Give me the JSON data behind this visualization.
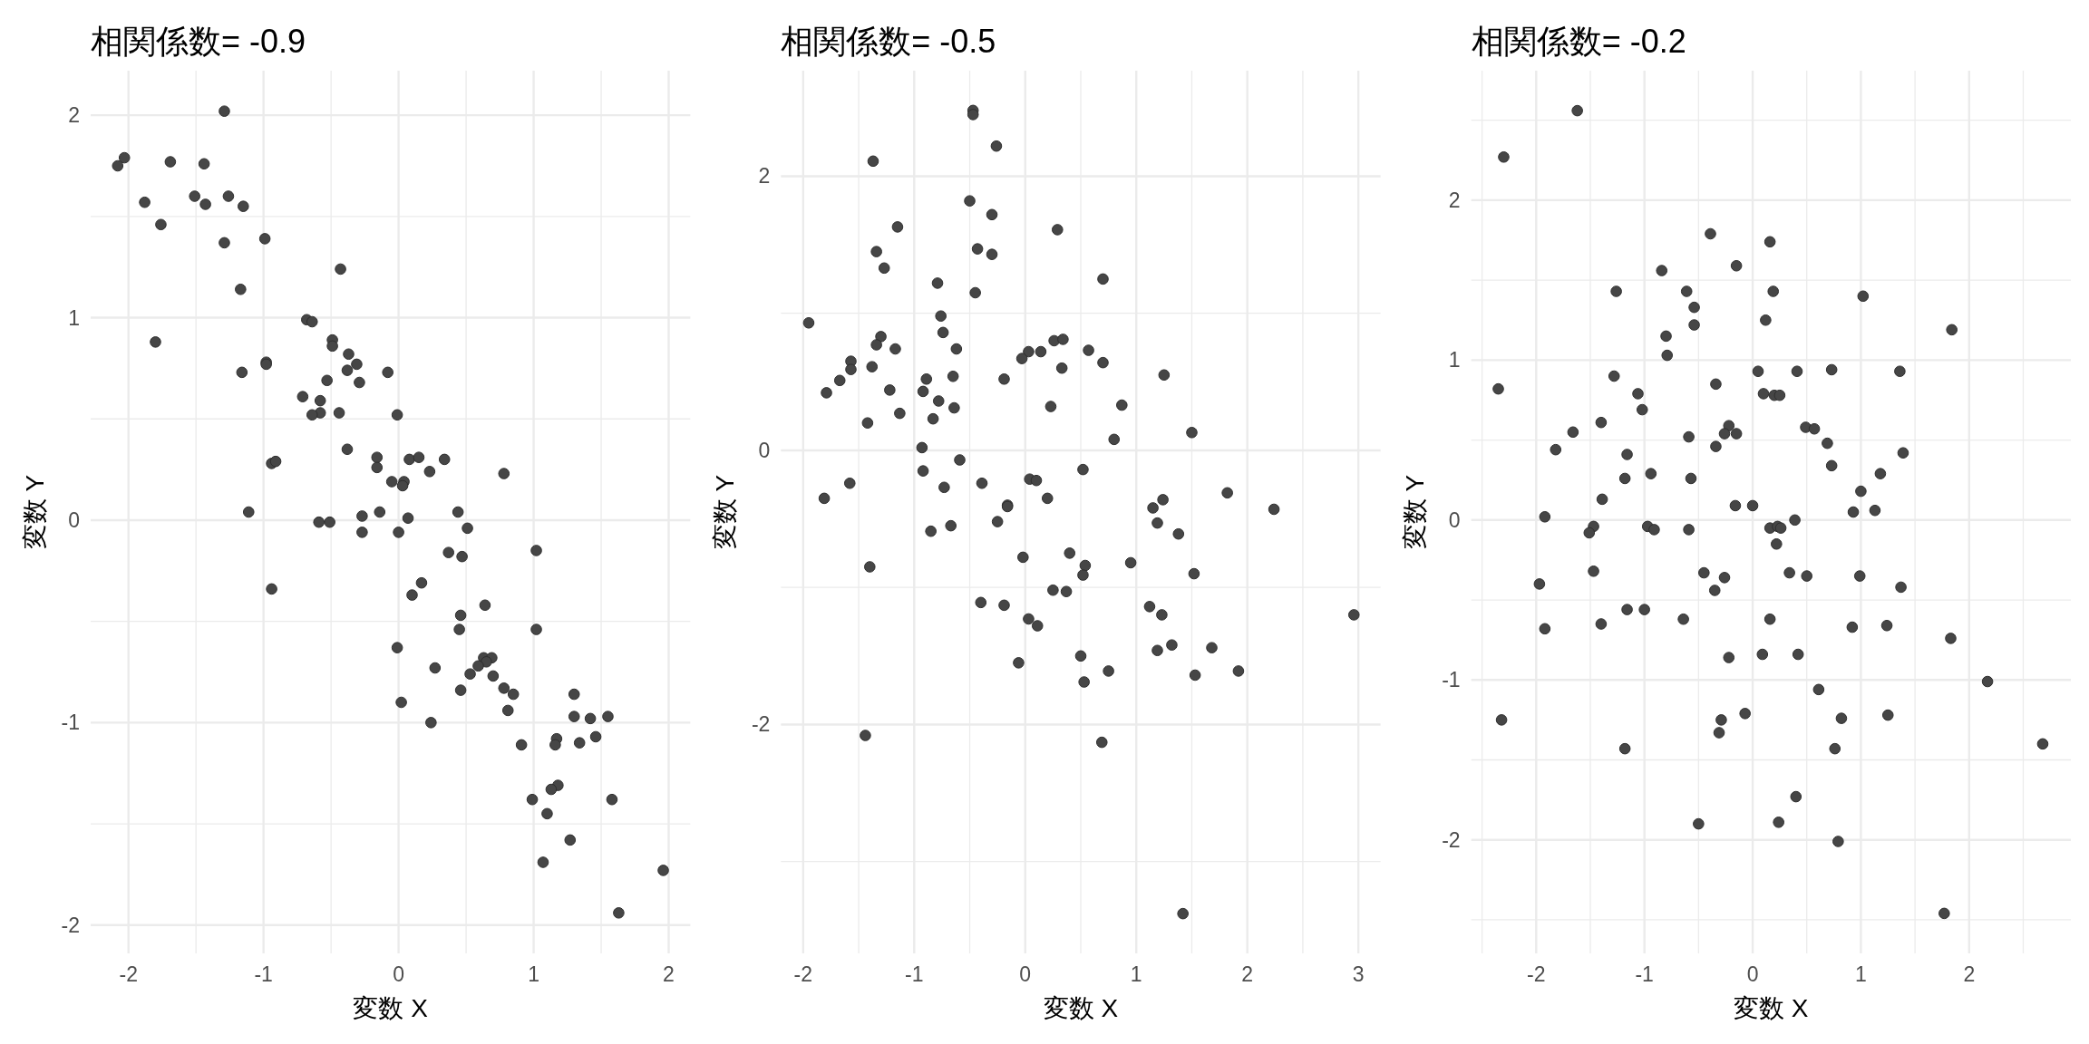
{
  "chart_data": [
    {
      "type": "scatter",
      "title": "相関係数= -0.9",
      "xlabel": "変数 X",
      "ylabel": "変数 Y",
      "color": "#464646",
      "marker": "circle",
      "grid": true,
      "xlim": [
        -2.28,
        2.16
      ],
      "ylim": [
        -2.14,
        2.22
      ],
      "xticks": [
        -2,
        {
          "value": -1.5,
          "label": null
        },
        -1,
        {
          "value": -0.5,
          "label": null
        },
        0,
        {
          "value": 0.5,
          "label": null
        },
        1,
        {
          "value": 1.5,
          "label": null
        },
        2
      ],
      "yticks": [
        -2,
        {
          "value": -1.5,
          "label": null
        },
        -1,
        {
          "value": -0.5,
          "label": null
        },
        0,
        {
          "value": 0.5,
          "label": null
        },
        1,
        {
          "value": 1.5,
          "label": null
        },
        2
      ],
      "x": [
        -2.08,
        -2.03,
        -1.69,
        -1.44,
        -1.29,
        -1.88,
        -1.76,
        -1.51,
        -1.43,
        -1.26,
        -1.15,
        -1.29,
        -0.99,
        -0.43,
        -1.17,
        -0.68,
        -0.64,
        -1.8,
        -0.49,
        -0.49,
        -0.37,
        -0.98,
        -0.98,
        -0.31,
        -0.38,
        -0.08,
        -1.16,
        -0.53,
        -0.29,
        -0.71,
        -0.58,
        -0.58,
        -0.64,
        -0.44,
        -0.01,
        -0.38,
        -0.16,
        -0.16,
        0.08,
        0.15,
        0.34,
        0.23,
        0.78,
        -0.94,
        -0.91,
        -0.05,
        0.04,
        0.03,
        -1.11,
        -0.27,
        -0.14,
        0.07,
        0.44,
        -0.59,
        -0.51,
        -0.27,
        0.0,
        0.51,
        0.37,
        0.47,
        1.02,
        -0.94,
        0.17,
        0.1,
        0.64,
        0.46,
        0.45,
        1.02,
        -0.01,
        0.63,
        0.69,
        0.65,
        0.59,
        0.27,
        0.53,
        0.7,
        0.46,
        0.78,
        0.85,
        0.02,
        0.81,
        0.24,
        1.3,
        1.3,
        1.42,
        1.55,
        1.46,
        1.34,
        1.17,
        1.16,
        0.91,
        1.18,
        1.13,
        0.99,
        1.58,
        1.1,
        1.27,
        1.07,
        1.96,
        1.63
      ],
      "values": [
        1.75,
        1.79,
        1.77,
        1.76,
        2.02,
        1.57,
        1.46,
        1.6,
        1.56,
        1.6,
        1.55,
        1.37,
        1.39,
        1.24,
        1.14,
        0.99,
        0.98,
        0.88,
        0.89,
        0.86,
        0.82,
        0.78,
        0.77,
        0.77,
        0.74,
        0.73,
        0.73,
        0.69,
        0.68,
        0.61,
        0.59,
        0.53,
        0.52,
        0.53,
        0.52,
        0.35,
        0.31,
        0.26,
        0.3,
        0.31,
        0.3,
        0.24,
        0.23,
        0.28,
        0.29,
        0.19,
        0.19,
        0.17,
        0.04,
        0.02,
        0.04,
        0.01,
        0.04,
        -0.01,
        -0.01,
        -0.06,
        -0.06,
        -0.04,
        -0.16,
        -0.18,
        -0.15,
        -0.34,
        -0.31,
        -0.37,
        -0.42,
        -0.47,
        -0.54,
        -0.54,
        -0.63,
        -0.68,
        -0.68,
        -0.7,
        -0.72,
        -0.73,
        -0.76,
        -0.77,
        -0.84,
        -0.83,
        -0.86,
        -0.9,
        -0.94,
        -1.0,
        -0.86,
        -0.97,
        -0.98,
        -0.97,
        -1.07,
        -1.1,
        -1.08,
        -1.11,
        -1.11,
        -1.31,
        -1.33,
        -1.38,
        -1.38,
        -1.45,
        -1.58,
        -1.69,
        -1.73,
        -1.94
      ]
    },
    {
      "type": "scatter",
      "title": "相関係数= -0.5",
      "xlabel": "変数 X",
      "ylabel": "変数 Y",
      "color": "#464646",
      "marker": "circle",
      "grid": true,
      "xlim": [
        -2.2,
        3.2
      ],
      "ylim": [
        -3.67,
        2.77
      ],
      "xticks": [
        -2,
        {
          "value": -1.5,
          "label": null
        },
        -1,
        {
          "value": -0.5,
          "label": null
        },
        0,
        {
          "value": 0.5,
          "label": null
        },
        1,
        {
          "value": 1.5,
          "label": null
        },
        2,
        {
          "value": 2.5,
          "label": null
        },
        3
      ],
      "yticks": [
        {
          "value": -3,
          "label": null
        },
        -2,
        {
          "value": -1,
          "label": null
        },
        0,
        {
          "value": 1,
          "label": null
        },
        2
      ],
      "x": [
        -0.47,
        -0.47,
        -0.26,
        -1.37,
        -0.5,
        -0.3,
        0.29,
        -1.15,
        -1.34,
        -0.43,
        -0.3,
        -1.27,
        0.7,
        -0.79,
        -0.45,
        -1.95,
        -0.76,
        -0.74,
        -1.3,
        -1.34,
        -1.17,
        -0.62,
        0.26,
        0.34,
        0.03,
        0.14,
        -0.03,
        0.57,
        0.7,
        -1.57,
        -1.57,
        -1.38,
        0.33,
        -1.67,
        -0.89,
        -0.65,
        -0.19,
        1.25,
        -1.79,
        -1.22,
        -0.92,
        -0.78,
        -0.64,
        0.23,
        0.87,
        -1.13,
        -0.83,
        -1.42,
        1.5,
        0.8,
        -0.93,
        -0.59,
        0.52,
        -0.92,
        -1.58,
        -0.39,
        0.04,
        0.1,
        -0.73,
        -1.81,
        0.2,
        -0.16,
        -0.16,
        1.82,
        1.24,
        1.15,
        2.24,
        -0.25,
        1.19,
        1.38,
        -0.85,
        -0.67,
        -0.02,
        0.4,
        -1.4,
        0.54,
        0.52,
        0.95,
        1.52,
        0.25,
        0.37,
        -0.4,
        -0.19,
        1.12,
        1.23,
        2.96,
        0.03,
        0.11,
        1.32,
        1.19,
        1.68,
        0.5,
        -0.06,
        0.75,
        1.92,
        0.53,
        1.53,
        -1.44,
        0.69,
        1.42
      ],
      "values": [
        2.48,
        2.45,
        2.22,
        2.11,
        1.82,
        1.72,
        1.61,
        1.63,
        1.45,
        1.47,
        1.43,
        1.33,
        1.25,
        1.22,
        1.15,
        0.93,
        0.98,
        0.86,
        0.83,
        0.77,
        0.74,
        0.74,
        0.8,
        0.81,
        0.72,
        0.72,
        0.67,
        0.73,
        0.64,
        0.65,
        0.59,
        0.61,
        0.6,
        0.51,
        0.52,
        0.54,
        0.52,
        0.55,
        0.42,
        0.44,
        0.43,
        0.36,
        0.31,
        0.32,
        0.33,
        0.27,
        0.23,
        0.2,
        0.13,
        0.08,
        0.02,
        -0.07,
        -0.14,
        -0.15,
        -0.24,
        -0.24,
        -0.21,
        -0.22,
        -0.27,
        -0.35,
        -0.35,
        -0.4,
        -0.41,
        -0.31,
        -0.36,
        -0.42,
        -0.43,
        -0.52,
        -0.53,
        -0.61,
        -0.59,
        -0.55,
        -0.78,
        -0.75,
        -0.85,
        -0.84,
        -0.91,
        -0.82,
        -0.9,
        -1.02,
        -1.03,
        -1.11,
        -1.13,
        -1.14,
        -1.2,
        -1.2,
        -1.23,
        -1.28,
        -1.42,
        -1.46,
        -1.44,
        -1.5,
        -1.55,
        -1.61,
        -1.61,
        -1.69,
        -1.64,
        -2.08,
        -2.13,
        -3.38
      ]
    },
    {
      "type": "scatter",
      "title": "相関係数= -0.2",
      "xlabel": "変数 X",
      "ylabel": "変数 Y",
      "color": "#464646",
      "marker": "circle",
      "grid": true,
      "xlim": [
        -2.6,
        2.94
      ],
      "ylim": [
        -2.71,
        2.81
      ],
      "xticks": [
        {
          "value": -2.5,
          "label": null
        },
        -2,
        {
          "value": -1.5,
          "label": null
        },
        -1,
        {
          "value": -0.5,
          "label": null
        },
        0,
        {
          "value": 0.5,
          "label": null
        },
        1,
        {
          "value": 1.5,
          "label": null
        },
        2,
        {
          "value": 2.5,
          "label": null
        }
      ],
      "yticks": [
        {
          "value": -2.5,
          "label": null
        },
        -2,
        {
          "value": -1.5,
          "label": null
        },
        -1,
        {
          "value": -0.5,
          "label": null
        },
        0,
        {
          "value": 0.5,
          "label": null
        },
        1,
        {
          "value": 1.5,
          "label": null
        },
        2,
        {
          "value": 2.5,
          "label": null
        }
      ],
      "x": [
        -1.62,
        -2.3,
        -0.39,
        0.16,
        -0.15,
        -0.84,
        -1.26,
        -0.61,
        0.19,
        1.02,
        -0.54,
        0.12,
        -0.54,
        1.84,
        -0.8,
        -0.79,
        0.05,
        0.41,
        0.73,
        1.36,
        -1.28,
        -2.35,
        -0.34,
        -1.06,
        0.1,
        0.2,
        0.25,
        -1.02,
        -1.4,
        -0.22,
        -1.66,
        -0.26,
        -0.15,
        -0.59,
        0.49,
        0.57,
        0.69,
        -0.34,
        -1.82,
        -1.16,
        1.39,
        0.73,
        -0.94,
        1.18,
        -1.18,
        -0.57,
        1.0,
        -1.39,
        -0.16,
        0.0,
        -1.92,
        0.93,
        1.13,
        0.39,
        -1.47,
        -1.51,
        -0.97,
        -0.91,
        -0.59,
        0.16,
        0.23,
        0.26,
        0.22,
        -1.47,
        -1.97,
        -0.45,
        -0.26,
        0.34,
        0.5,
        0.99,
        -0.35,
        1.37,
        -1.16,
        -1.0,
        -0.64,
        0.16,
        -1.92,
        -1.4,
        0.92,
        1.24,
        1.83,
        -0.22,
        0.09,
        0.42,
        2.17,
        0.61,
        -2.32,
        -0.07,
        -0.29,
        -0.31,
        0.82,
        1.25,
        -1.18,
        0.76,
        2.68,
        0.4,
        -0.5,
        0.24,
        0.79,
        1.77
      ],
      "values": [
        2.56,
        2.27,
        1.79,
        1.74,
        1.59,
        1.56,
        1.43,
        1.43,
        1.43,
        1.4,
        1.33,
        1.25,
        1.22,
        1.19,
        1.15,
        1.03,
        0.93,
        0.93,
        0.94,
        0.93,
        0.9,
        0.82,
        0.85,
        0.79,
        0.79,
        0.78,
        0.78,
        0.69,
        0.61,
        0.59,
        0.55,
        0.54,
        0.54,
        0.52,
        0.58,
        0.57,
        0.48,
        0.46,
        0.44,
        0.41,
        0.42,
        0.34,
        0.29,
        0.29,
        0.26,
        0.26,
        0.18,
        0.13,
        0.09,
        0.09,
        0.02,
        0.05,
        0.06,
        0.0,
        -0.04,
        -0.08,
        -0.04,
        -0.06,
        -0.06,
        -0.05,
        -0.04,
        -0.05,
        -0.15,
        -0.32,
        -0.4,
        -0.33,
        -0.36,
        -0.33,
        -0.35,
        -0.35,
        -0.44,
        -0.42,
        -0.56,
        -0.56,
        -0.62,
        -0.62,
        -0.68,
        -0.65,
        -0.67,
        -0.66,
        -0.74,
        -0.86,
        -0.84,
        -0.84,
        -1.01,
        -1.06,
        -1.25,
        -1.21,
        -1.25,
        -1.33,
        -1.24,
        -1.22,
        -1.43,
        -1.43,
        -1.4,
        -1.73,
        -1.9,
        -1.89,
        -2.01,
        -2.46
      ]
    }
  ]
}
